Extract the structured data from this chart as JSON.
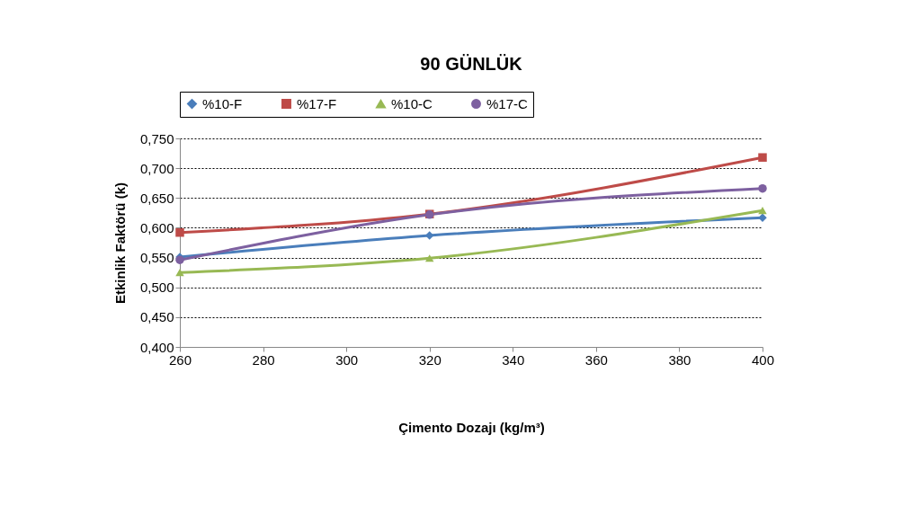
{
  "chart_data": {
    "type": "line",
    "title": "90 GÜNLÜK",
    "xlabel": "Çimento Dozajı (kg/m³)",
    "ylabel": "Etkinlik Faktörü (k)",
    "x": [
      260,
      320,
      400
    ],
    "series": [
      {
        "name": "%10-F",
        "color": "#4a7ebb",
        "marker": "diamond",
        "values": [
          0.551,
          0.587,
          0.617
        ]
      },
      {
        "name": "%17-F",
        "color": "#be4b48",
        "marker": "square",
        "values": [
          0.592,
          0.623,
          0.718
        ]
      },
      {
        "name": "%10-C",
        "color": "#98b954",
        "marker": "triangle",
        "values": [
          0.525,
          0.549,
          0.629
        ]
      },
      {
        "name": "%17-C",
        "color": "#7d60a0",
        "marker": "circle",
        "values": [
          0.546,
          0.622,
          0.666
        ]
      }
    ],
    "xlim": [
      260,
      400
    ],
    "xticks": [
      260,
      280,
      300,
      320,
      340,
      360,
      380,
      400
    ],
    "ylim": [
      0.4,
      0.75
    ],
    "yticks": [
      {
        "value": 0.4,
        "label": "0,400"
      },
      {
        "value": 0.45,
        "label": "0,450"
      },
      {
        "value": 0.5,
        "label": "0,500"
      },
      {
        "value": 0.55,
        "label": "0,550"
      },
      {
        "value": 0.6,
        "label": "0,600"
      },
      {
        "value": 0.65,
        "label": "0,650"
      },
      {
        "value": 0.7,
        "label": "0,700"
      },
      {
        "value": 0.75,
        "label": "0,750"
      }
    ],
    "grid": "y",
    "legend": "top",
    "line_style": "solid"
  }
}
